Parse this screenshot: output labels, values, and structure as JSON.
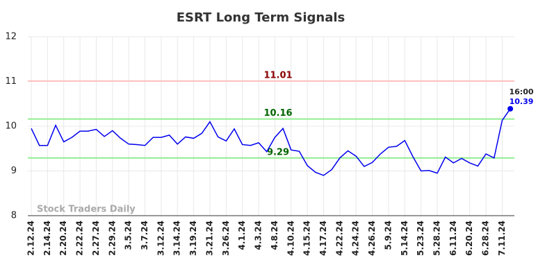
{
  "chart_data": {
    "type": "line",
    "title": "ESRT Long Term Signals",
    "categories": [
      "2.12.24",
      null,
      "2.14.24",
      null,
      "2.20.24",
      null,
      "2.22.24",
      null,
      "2.27.24",
      null,
      "2.29.24",
      null,
      "3.5.24",
      null,
      "3.7.24",
      null,
      "3.12.24",
      null,
      "3.14.24",
      null,
      "3.19.24",
      null,
      "3.21.24",
      null,
      "3.26.24",
      null,
      "4.1.24",
      null,
      "4.3.24",
      null,
      "4.8.24",
      null,
      "4.10.24",
      null,
      "4.15.24",
      null,
      "4.17.24",
      null,
      "4.22.24",
      null,
      "4.24.24",
      null,
      "4.26.24",
      null,
      "5.9.24",
      null,
      "5.14.24",
      null,
      "5.23.24",
      null,
      "5.28.24",
      null,
      "6.11.24",
      null,
      "6.20.24",
      null,
      "6.28.24",
      null,
      "7.11.24",
      null
    ],
    "values": [
      9.95,
      9.57,
      9.57,
      10.02,
      9.65,
      9.75,
      9.89,
      9.89,
      9.93,
      9.77,
      9.9,
      9.73,
      9.6,
      9.59,
      9.57,
      9.75,
      9.75,
      9.8,
      9.6,
      9.76,
      9.73,
      9.84,
      10.1,
      9.76,
      9.67,
      9.94,
      9.59,
      9.57,
      9.63,
      9.43,
      9.75,
      9.95,
      9.47,
      9.44,
      9.12,
      8.97,
      8.9,
      9.03,
      9.29,
      9.45,
      9.33,
      9.1,
      9.19,
      9.38,
      9.53,
      9.55,
      9.68,
      9.32,
      9.0,
      9.01,
      8.95,
      9.31,
      9.18,
      9.28,
      9.18,
      9.11,
      9.38,
      9.29,
      10.13,
      10.39
    ],
    "color": "#0000ee",
    "ylim": [
      8,
      12
    ],
    "yticks": [
      8,
      9,
      10,
      11,
      12
    ],
    "grid": true,
    "hlines": [
      {
        "value": 11.01,
        "color": "#ffc0c0",
        "label_color": "#8b0000"
      },
      {
        "value": 10.16,
        "color": "#90ee90",
        "label_color": "#006400"
      },
      {
        "value": 9.29,
        "color": "#90ee90",
        "label_color": "#006400"
      }
    ],
    "last_time": "16:00",
    "watermark": "Stock Traders Daily"
  }
}
